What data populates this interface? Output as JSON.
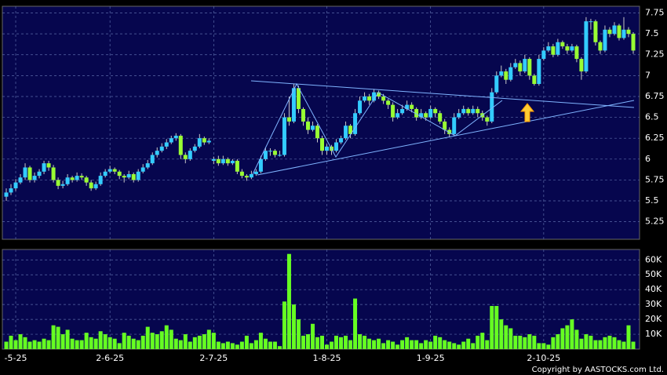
{
  "chart_data": {
    "type": "candlestick",
    "categories": [
      null,
      null,
      "-5-25",
      null,
      null,
      null,
      null,
      null,
      null,
      null,
      null,
      null,
      null,
      null,
      null,
      null,
      null,
      null,
      null,
      null,
      null,
      null,
      "2-6-25",
      null,
      null,
      null,
      null,
      null,
      null,
      null,
      null,
      null,
      null,
      null,
      null,
      null,
      null,
      null,
      null,
      null,
      null,
      null,
      null,
      null,
      "2-7-25",
      null,
      null,
      null,
      null,
      null,
      null,
      null,
      null,
      null,
      null,
      null,
      null,
      null,
      null,
      null,
      null,
      null,
      null,
      null,
      null,
      null,
      null,
      null,
      "1-8-25",
      null,
      null,
      null,
      null,
      null,
      null,
      null,
      null,
      null,
      null,
      null,
      null,
      null,
      null,
      null,
      null,
      null,
      null,
      null,
      null,
      null,
      "1-9-25",
      null,
      null,
      null,
      null,
      null,
      null,
      null,
      null,
      null,
      null,
      null,
      null,
      null,
      null,
      null,
      null,
      null,
      null,
      null,
      null,
      null,
      null,
      null,
      "2-10-25",
      null,
      null,
      null,
      null,
      null,
      null,
      null,
      null,
      null,
      null,
      null,
      null,
      null,
      null,
      null,
      null,
      null,
      null,
      null
    ],
    "ohlc": [
      [
        5.55,
        5.65,
        5.5,
        5.6
      ],
      [
        5.6,
        5.7,
        5.57,
        5.65
      ],
      [
        5.65,
        5.76,
        5.62,
        5.72
      ],
      [
        5.72,
        5.82,
        5.7,
        5.78
      ],
      [
        5.78,
        5.95,
        5.75,
        5.9
      ],
      [
        5.9,
        5.92,
        5.72,
        5.75
      ],
      [
        5.75,
        5.84,
        5.72,
        5.8
      ],
      [
        5.8,
        5.88,
        5.77,
        5.85
      ],
      [
        5.85,
        5.98,
        5.82,
        5.95
      ],
      [
        5.95,
        5.98,
        5.86,
        5.9
      ],
      [
        5.9,
        5.93,
        5.72,
        5.75
      ],
      [
        5.75,
        5.78,
        5.64,
        5.68
      ],
      [
        5.68,
        5.74,
        5.65,
        5.7
      ],
      [
        5.7,
        5.82,
        5.68,
        5.78
      ],
      [
        5.78,
        5.8,
        5.72,
        5.75
      ],
      [
        5.75,
        5.84,
        5.73,
        5.8
      ],
      [
        5.8,
        5.83,
        5.75,
        5.78
      ],
      [
        5.78,
        5.8,
        5.68,
        5.72
      ],
      [
        5.72,
        5.75,
        5.62,
        5.65
      ],
      [
        5.65,
        5.73,
        5.63,
        5.7
      ],
      [
        5.7,
        5.84,
        5.68,
        5.8
      ],
      [
        5.8,
        5.88,
        5.78,
        5.85
      ],
      [
        5.85,
        5.92,
        5.83,
        5.88
      ],
      [
        5.88,
        5.9,
        5.82,
        5.85
      ],
      [
        5.85,
        5.87,
        5.76,
        5.8
      ],
      [
        5.8,
        5.82,
        5.72,
        5.78
      ],
      [
        5.78,
        5.86,
        5.76,
        5.82
      ],
      [
        5.82,
        5.84,
        5.72,
        5.75
      ],
      [
        5.75,
        5.88,
        5.73,
        5.85
      ],
      [
        5.85,
        5.94,
        5.83,
        5.9
      ],
      [
        5.9,
        5.99,
        5.88,
        5.95
      ],
      [
        5.95,
        6.08,
        5.93,
        6.05
      ],
      [
        6.05,
        6.14,
        6.02,
        6.1
      ],
      [
        6.1,
        6.19,
        6.08,
        6.15
      ],
      [
        6.15,
        6.24,
        6.12,
        6.2
      ],
      [
        6.2,
        6.28,
        6.18,
        6.25
      ],
      [
        6.25,
        6.31,
        6.22,
        6.28
      ],
      [
        6.28,
        6.3,
        6.0,
        6.05
      ],
      [
        6.05,
        6.08,
        5.95,
        6.0
      ],
      [
        6.0,
        6.13,
        5.98,
        6.1
      ],
      [
        6.1,
        6.18,
        6.08,
        6.15
      ],
      [
        6.15,
        6.3,
        6.13,
        6.25
      ],
      [
        6.25,
        6.27,
        6.17,
        6.2
      ],
      [
        6.2,
        6.25,
        6.18,
        6.22
      ],
      [
        5.98,
        6.03,
        5.94,
        6.0
      ],
      [
        6.0,
        6.04,
        5.92,
        5.95
      ],
      [
        5.95,
        6.04,
        5.93,
        6.0
      ],
      [
        6.0,
        6.02,
        5.92,
        5.95
      ],
      [
        5.95,
        6.0,
        5.93,
        5.98
      ],
      [
        5.98,
        6.0,
        5.82,
        5.85
      ],
      [
        5.85,
        5.88,
        5.77,
        5.8
      ],
      [
        5.8,
        5.82,
        5.74,
        5.78
      ],
      [
        5.78,
        5.86,
        5.76,
        5.82
      ],
      [
        5.82,
        5.88,
        5.8,
        5.85
      ],
      [
        5.85,
        6.04,
        5.83,
        6.0
      ],
      [
        6.0,
        6.14,
        5.98,
        6.1
      ],
      [
        6.1,
        6.13,
        6.04,
        6.1
      ],
      [
        6.1,
        6.12,
        6.02,
        6.05
      ],
      [
        6.05,
        6.1,
        6.03,
        6.05
      ],
      [
        6.05,
        6.55,
        6.03,
        6.5
      ],
      [
        6.5,
        6.75,
        6.4,
        6.45
      ],
      [
        6.45,
        6.9,
        6.43,
        6.85
      ],
      [
        6.85,
        6.88,
        6.55,
        6.6
      ],
      [
        6.6,
        6.62,
        6.4,
        6.45
      ],
      [
        6.45,
        6.5,
        6.3,
        6.35
      ],
      [
        6.35,
        6.45,
        6.33,
        6.4
      ],
      [
        6.4,
        6.42,
        6.2,
        6.25
      ],
      [
        6.25,
        6.28,
        6.05,
        6.1
      ],
      [
        6.1,
        6.18,
        6.05,
        6.15
      ],
      [
        6.15,
        6.17,
        6.05,
        6.1
      ],
      [
        6.1,
        6.24,
        6.08,
        6.2
      ],
      [
        6.2,
        6.28,
        6.18,
        6.25
      ],
      [
        6.25,
        6.45,
        6.23,
        6.4
      ],
      [
        6.4,
        6.42,
        6.25,
        6.3
      ],
      [
        6.3,
        6.6,
        6.28,
        6.55
      ],
      [
        6.55,
        6.75,
        6.53,
        6.7
      ],
      [
        6.7,
        6.8,
        6.68,
        6.75
      ],
      [
        6.75,
        6.78,
        6.65,
        6.7
      ],
      [
        6.7,
        6.84,
        6.68,
        6.8
      ],
      [
        6.8,
        6.82,
        6.72,
        6.75
      ],
      [
        6.75,
        6.78,
        6.66,
        6.7
      ],
      [
        6.7,
        6.72,
        6.6,
        6.65
      ],
      [
        6.65,
        6.68,
        6.45,
        6.5
      ],
      [
        6.5,
        6.6,
        6.48,
        6.55
      ],
      [
        6.55,
        6.65,
        6.53,
        6.6
      ],
      [
        6.6,
        6.7,
        6.58,
        6.65
      ],
      [
        6.65,
        6.68,
        6.56,
        6.6
      ],
      [
        6.6,
        6.62,
        6.46,
        6.5
      ],
      [
        6.5,
        6.6,
        6.48,
        6.55
      ],
      [
        6.55,
        6.57,
        6.46,
        6.5
      ],
      [
        6.5,
        6.64,
        6.48,
        6.6
      ],
      [
        6.6,
        6.62,
        6.5,
        6.55
      ],
      [
        6.55,
        6.58,
        6.42,
        6.45
      ],
      [
        6.45,
        6.48,
        6.3,
        6.35
      ],
      [
        6.35,
        6.38,
        6.26,
        6.3
      ],
      [
        6.3,
        6.55,
        6.28,
        6.5
      ],
      [
        6.5,
        6.6,
        6.48,
        6.55
      ],
      [
        6.55,
        6.64,
        6.53,
        6.6
      ],
      [
        6.6,
        6.62,
        6.52,
        6.55
      ],
      [
        6.55,
        6.64,
        6.53,
        6.6
      ],
      [
        6.6,
        6.63,
        6.5,
        6.55
      ],
      [
        6.55,
        6.58,
        6.46,
        6.5
      ],
      [
        6.5,
        6.52,
        6.4,
        6.45
      ],
      [
        6.45,
        6.85,
        6.43,
        6.8
      ],
      [
        6.8,
        7.05,
        6.78,
        7.0
      ],
      [
        7.0,
        7.12,
        6.98,
        7.05
      ],
      [
        7.05,
        7.08,
        6.9,
        6.95
      ],
      [
        6.95,
        7.15,
        6.93,
        7.1
      ],
      [
        7.1,
        7.2,
        7.08,
        7.15
      ],
      [
        7.15,
        7.18,
        7.0,
        7.05
      ],
      [
        7.05,
        7.25,
        7.03,
        7.2
      ],
      [
        7.2,
        7.22,
        6.95,
        7.0
      ],
      [
        7.0,
        7.02,
        6.88,
        6.9
      ],
      [
        6.9,
        7.25,
        6.88,
        7.2
      ],
      [
        7.2,
        7.34,
        7.18,
        7.3
      ],
      [
        7.3,
        7.4,
        7.28,
        7.35
      ],
      [
        7.35,
        7.38,
        7.22,
        7.25
      ],
      [
        7.25,
        7.44,
        7.23,
        7.4
      ],
      [
        7.4,
        7.42,
        7.32,
        7.35
      ],
      [
        7.35,
        7.38,
        7.26,
        7.3
      ],
      [
        7.3,
        7.38,
        7.28,
        7.35
      ],
      [
        7.35,
        7.37,
        7.16,
        7.2
      ],
      [
        7.2,
        7.22,
        6.95,
        7.05
      ],
      [
        7.05,
        7.7,
        7.03,
        7.65
      ],
      [
        7.65,
        7.68,
        7.55,
        7.65
      ],
      [
        7.65,
        7.67,
        7.36,
        7.4
      ],
      [
        7.4,
        7.42,
        7.26,
        7.3
      ],
      [
        7.3,
        7.6,
        7.28,
        7.55
      ],
      [
        7.55,
        7.58,
        7.46,
        7.5
      ],
      [
        7.5,
        7.64,
        7.48,
        7.6
      ],
      [
        7.6,
        7.62,
        7.42,
        7.45
      ],
      [
        7.45,
        7.7,
        7.43,
        7.55
      ],
      [
        7.55,
        7.58,
        7.46,
        7.5
      ],
      [
        7.5,
        7.52,
        7.26,
        7.3
      ]
    ],
    "up_color": "#33ccff",
    "down_color": "#99ff33",
    "ylim": [
      5.04,
      7.83
    ],
    "yticks": [
      5.25,
      5.5,
      5.75,
      6,
      6.25,
      6.5,
      6.75,
      7,
      7.25,
      7.5,
      7.75
    ],
    "grid": true,
    "volume": {
      "color": "#66ff22",
      "values": [
        5000,
        9000,
        6000,
        10000,
        8000,
        5000,
        6000,
        5000,
        7000,
        6000,
        16000,
        15000,
        10000,
        13000,
        7000,
        6000,
        6000,
        11000,
        8000,
        7000,
        12000,
        10000,
        8000,
        7000,
        4000,
        11000,
        9000,
        7000,
        6000,
        9000,
        15000,
        11000,
        10000,
        12000,
        16000,
        13000,
        7000,
        6000,
        10000,
        5000,
        8000,
        9000,
        10000,
        13000,
        11000,
        5000,
        4000,
        5000,
        4000,
        3000,
        5000,
        9000,
        4000,
        6000,
        11000,
        7000,
        5000,
        5000,
        2000,
        32000,
        64000,
        30000,
        20000,
        9000,
        10000,
        17000,
        8000,
        9000,
        3000,
        5000,
        9000,
        8000,
        9000,
        6000,
        34000,
        10000,
        9000,
        7000,
        6000,
        7000,
        4000,
        6000,
        5000,
        3000,
        6000,
        8000,
        6000,
        6000,
        4000,
        6000,
        5000,
        9000,
        8000,
        6000,
        5000,
        4000,
        3000,
        5000,
        7000,
        4000,
        9000,
        11000,
        6000,
        29000,
        29000,
        20000,
        16000,
        14000,
        9000,
        9000,
        8000,
        10000,
        9000,
        4000,
        4000,
        3000,
        8000,
        10000,
        14000,
        16000,
        20000,
        13000,
        7000,
        10000,
        9000,
        6000,
        6000,
        8000,
        9000,
        8000,
        6000,
        5000,
        16000,
        5000
      ],
      "ylim": [
        0,
        67000
      ],
      "yticks": [
        {
          "value": 10000,
          "label": "10K"
        },
        {
          "value": 20000,
          "label": "20K"
        },
        {
          "value": 30000,
          "label": "30K"
        },
        {
          "value": 40000,
          "label": "40K"
        },
        {
          "value": 50000,
          "label": "50K"
        },
        {
          "value": 60000,
          "label": "60K"
        }
      ]
    },
    "annotation": "Copyright by AASTOCKS.com Ltd."
  }
}
